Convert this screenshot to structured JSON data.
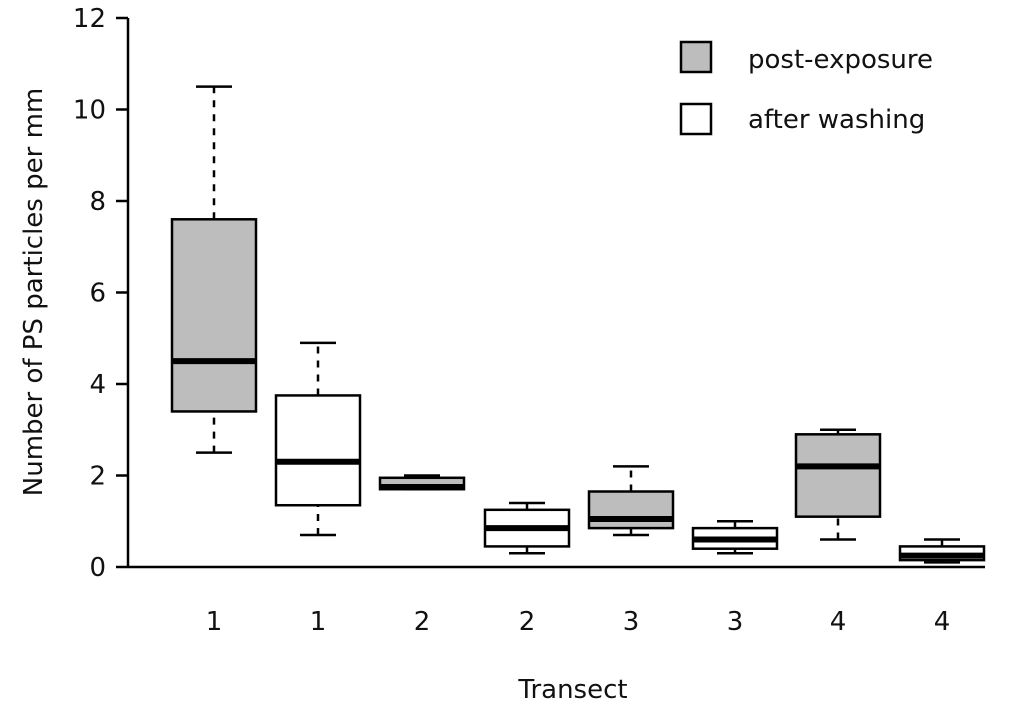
{
  "chart_data": {
    "type": "box",
    "xlabel": "Transect",
    "ylabel": "Number of PS particles per mm",
    "ylim": [
      0,
      12
    ],
    "yticks": [
      "0",
      "2",
      "4",
      "6",
      "8",
      "10",
      "12"
    ],
    "legend": [
      {
        "name": "post-exposure",
        "color": "#bdbdbd"
      },
      {
        "name": "after washing",
        "color": "#ffffff"
      }
    ],
    "legend_position": "top-right",
    "boxes": [
      {
        "label": "1",
        "series": "post-exposure",
        "min": 2.5,
        "q1": 3.4,
        "median": 4.5,
        "q3": 7.6,
        "max": 10.5
      },
      {
        "label": "1",
        "series": "after washing",
        "min": 0.7,
        "q1": 1.35,
        "median": 2.3,
        "q3": 3.75,
        "max": 4.9
      },
      {
        "label": "2",
        "series": "post-exposure",
        "min": 1.7,
        "q1": 1.7,
        "median": 1.75,
        "q3": 1.95,
        "max": 2.0
      },
      {
        "label": "2",
        "series": "after washing",
        "min": 0.3,
        "q1": 0.45,
        "median": 0.85,
        "q3": 1.25,
        "max": 1.4
      },
      {
        "label": "3",
        "series": "post-exposure",
        "min": 0.7,
        "q1": 0.85,
        "median": 1.05,
        "q3": 1.65,
        "max": 2.2
      },
      {
        "label": "3",
        "series": "after washing",
        "min": 0.3,
        "q1": 0.4,
        "median": 0.6,
        "q3": 0.85,
        "max": 1.0
      },
      {
        "label": "4",
        "series": "post-exposure",
        "min": 0.6,
        "q1": 1.1,
        "median": 2.2,
        "q3": 2.9,
        "max": 3.0
      },
      {
        "label": "4",
        "series": "after washing",
        "min": 0.1,
        "q1": 0.15,
        "median": 0.25,
        "q3": 0.45,
        "max": 0.6
      }
    ]
  }
}
